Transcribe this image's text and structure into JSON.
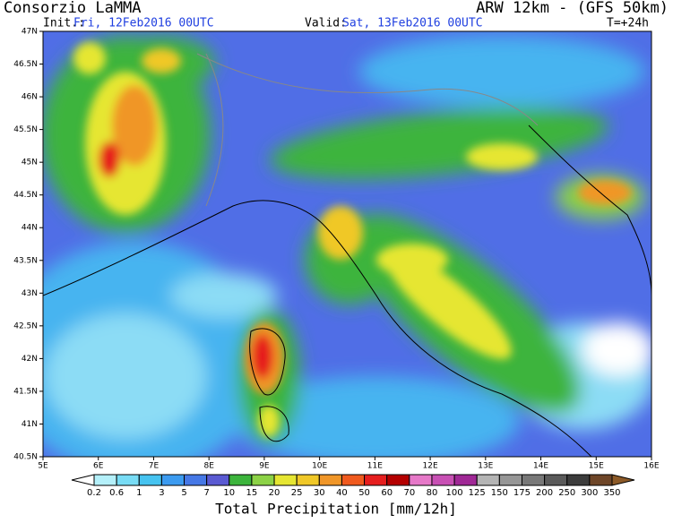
{
  "header": {
    "title": "Consorzio LaMMA",
    "model": "ARW 12km - (GFS 50km)",
    "init_label": "Init.:",
    "init": "Fri, 12Feb2016 00UTC",
    "valid_label": "Valid:",
    "valid": "Sat, 13Feb2016 00UTC",
    "lead": "T=+24h"
  },
  "map": {
    "lon_labels": [
      "5E",
      "6E",
      "7E",
      "8E",
      "9E",
      "10E",
      "11E",
      "12E",
      "13E",
      "14E",
      "15E",
      "16E"
    ],
    "lat_labels": [
      "47N",
      "46.5N",
      "46N",
      "45.5N",
      "45N",
      "44.5N",
      "44N",
      "43.5N",
      "43N",
      "42.5N",
      "42N",
      "41.5N",
      "41N",
      "40.5N"
    ]
  },
  "legend": {
    "title": "Total Precipitation [mm/12h]",
    "levels": [
      "0.2",
      "0.6",
      "1",
      "3",
      "5",
      "7",
      "10",
      "15",
      "20",
      "25",
      "30",
      "40",
      "50",
      "60",
      "70",
      "80",
      "100",
      "125",
      "150",
      "175",
      "200",
      "250",
      "300",
      "350"
    ],
    "colors": [
      "#ffffff",
      "#b4f0fa",
      "#78dcf5",
      "#46c3f0",
      "#3c9bf0",
      "#4678e6",
      "#5a5ad2",
      "#3cb43c",
      "#8cd246",
      "#e6e632",
      "#f0c828",
      "#f09628",
      "#f05a1e",
      "#e61e1e",
      "#b40000",
      "#e678c8",
      "#c850b4",
      "#a02896",
      "#b4b4b4",
      "#969696",
      "#787878",
      "#5a5a5a",
      "#3c3c3c",
      "#6e4628",
      "#8c5a28"
    ]
  }
}
